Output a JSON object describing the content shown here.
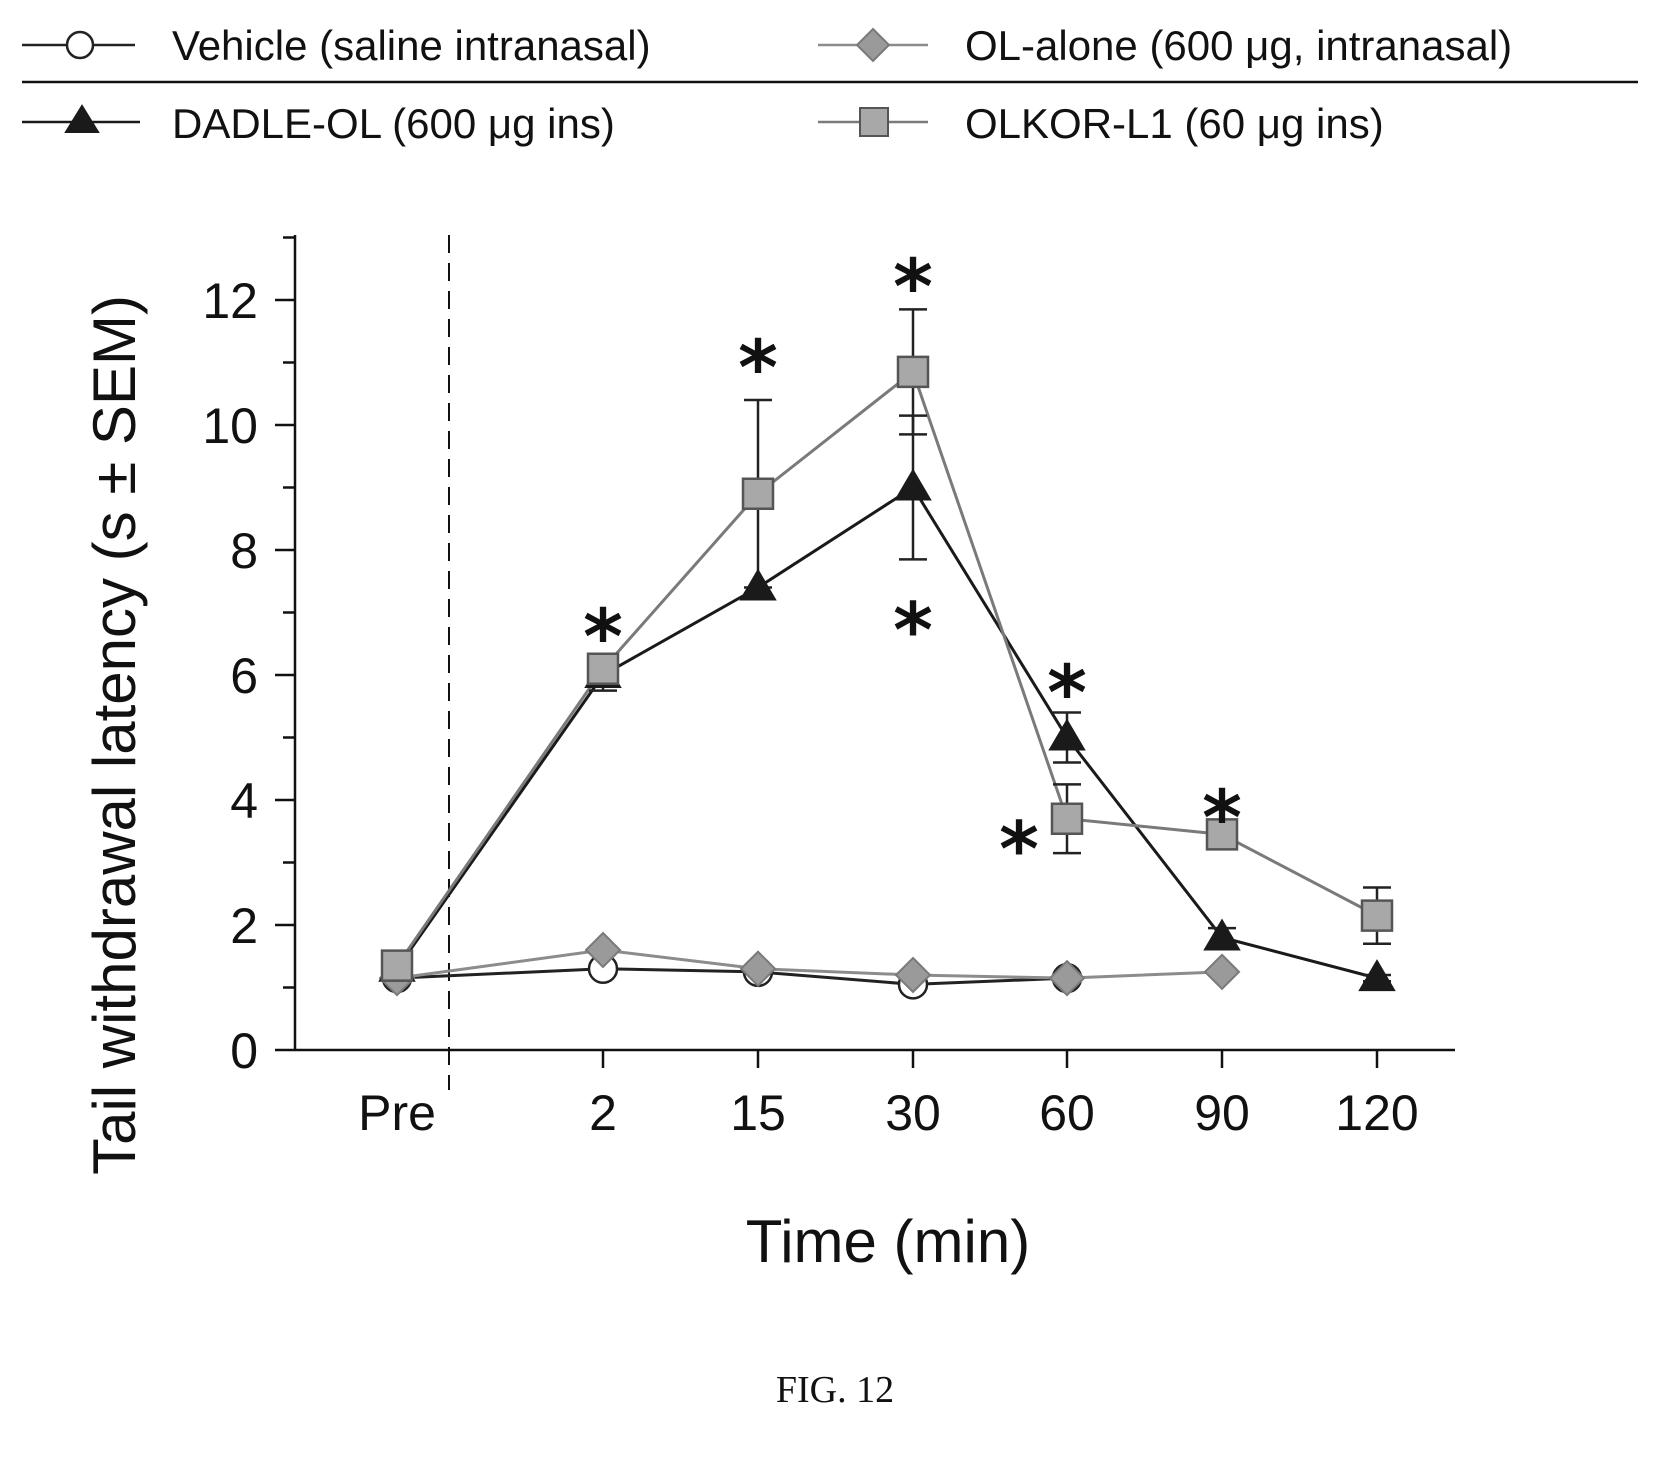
{
  "chart_data": {
    "type": "line",
    "categories": [
      "Pre",
      "2",
      "15",
      "30",
      "60",
      "90",
      "120"
    ],
    "xlabel": "Time (min)",
    "ylabel": "Tail withdrawal latency (s ± SEM)",
    "ylim": [
      0,
      13
    ],
    "yticks": [
      0,
      2,
      4,
      6,
      8,
      10,
      12
    ],
    "grid": false,
    "legend_placement": "top",
    "series": [
      {
        "name": "Vehicle (saline intranasal)",
        "marker": "circle-open",
        "color": "#222222",
        "marker_fill": "#ffffff",
        "values": [
          1.15,
          1.3,
          1.25,
          1.05,
          1.15,
          null,
          null
        ],
        "errors": [
          0,
          0,
          0,
          0,
          0,
          null,
          null
        ]
      },
      {
        "name": "OL-alone (600 μg, intranasal)",
        "marker": "diamond",
        "color": "#8c8c8c",
        "marker_fill": "#9a9a9a",
        "values": [
          1.15,
          1.6,
          1.3,
          1.2,
          1.15,
          1.25,
          null
        ],
        "errors": [
          0,
          0,
          0,
          0,
          0,
          0,
          null
        ]
      },
      {
        "name": "DADLE-OL (600 μg ins)",
        "marker": "triangle",
        "color": "#1a1a1a",
        "marker_fill": "#1a1a1a",
        "values": [
          1.3,
          6.0,
          7.4,
          9.0,
          5.0,
          1.8,
          1.15
        ],
        "errors": [
          0,
          0.25,
          0,
          1.15,
          0.4,
          0.15,
          0.05
        ]
      },
      {
        "name": "OLKOR-L1 (60 μg ins)",
        "marker": "square",
        "color": "#7a7a7a",
        "marker_fill": "#a8a8a8",
        "values": [
          1.35,
          6.1,
          8.9,
          10.85,
          3.7,
          3.45,
          2.15
        ],
        "errors": [
          0,
          0,
          1.5,
          1.0,
          0.55,
          0,
          0.45
        ]
      }
    ],
    "annotations": [
      {
        "text": "*",
        "x": "2",
        "y": 6.9
      },
      {
        "text": "*",
        "x": "15",
        "y": 11.2
      },
      {
        "text": "*",
        "x": "30",
        "y": 12.5
      },
      {
        "text": "*",
        "x": "30",
        "y": 7.0
      },
      {
        "text": "*",
        "x": "60",
        "y": 6.0
      },
      {
        "text": "*",
        "x": "60",
        "y": 3.5
      },
      {
        "text": "*",
        "x": "90",
        "y": 4.0
      }
    ]
  },
  "figure_caption": "FIG. 12"
}
